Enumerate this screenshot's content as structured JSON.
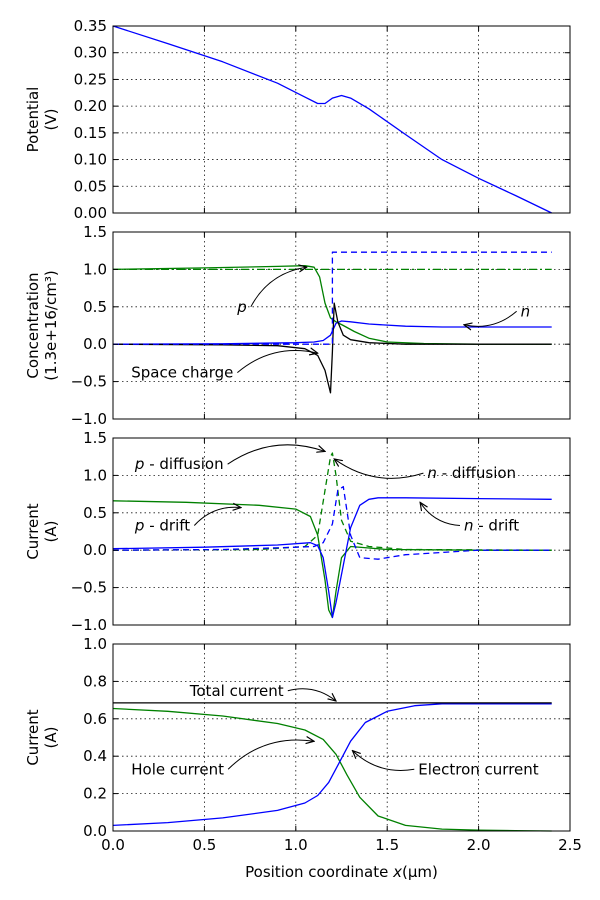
{
  "colors": {
    "blue": "#0000ff",
    "green": "#008000",
    "black": "#000000"
  },
  "chart_data": [
    {
      "type": "line",
      "ylabel_lines": [
        "Potential",
        "(V)"
      ],
      "xlim": [
        0.0,
        2.5
      ],
      "ylim": [
        0.0,
        0.35
      ],
      "yticks": [
        "0.00",
        "0.05",
        "0.10",
        "0.15",
        "0.20",
        "0.25",
        "0.30",
        "0.35"
      ],
      "grid": true,
      "series": [
        {
          "color": "blue",
          "style": "solid",
          "x": [
            0.0,
            0.3,
            0.6,
            0.9,
            1.05,
            1.12,
            1.16,
            1.2,
            1.25,
            1.3,
            1.4,
            1.6,
            1.8,
            2.0,
            2.2,
            2.4
          ],
          "y": [
            0.35,
            0.317,
            0.283,
            0.243,
            0.217,
            0.205,
            0.205,
            0.215,
            0.22,
            0.215,
            0.195,
            0.147,
            0.1,
            0.065,
            0.033,
            0.0
          ]
        }
      ],
      "annotations": []
    },
    {
      "type": "line",
      "ylabel_lines": [
        "Concentration",
        "(1.3e+16/cm³)"
      ],
      "xlim": [
        0.0,
        2.5
      ],
      "ylim": [
        -1.0,
        1.5
      ],
      "yticks": [
        "−1.0",
        "−0.5",
        "0.0",
        "0.5",
        "1.0",
        "1.5"
      ],
      "grid": true,
      "series": [
        {
          "color": "green",
          "style": "solid",
          "x": [
            0.0,
            0.5,
            0.9,
            1.05,
            1.1,
            1.13,
            1.16,
            1.19,
            1.22,
            1.26,
            1.32,
            1.4,
            1.5,
            1.7,
            2.0,
            2.4
          ],
          "y": [
            1.0,
            1.02,
            1.04,
            1.05,
            1.03,
            0.9,
            0.55,
            0.35,
            0.3,
            0.25,
            0.17,
            0.08,
            0.03,
            0.01,
            0.0,
            0.0
          ]
        },
        {
          "color": "blue",
          "style": "solid",
          "x": [
            0.0,
            0.6,
            1.0,
            1.1,
            1.15,
            1.19,
            1.22,
            1.25,
            1.3,
            1.4,
            1.6,
            1.8,
            2.4
          ],
          "y": [
            0.0,
            0.005,
            0.02,
            0.03,
            0.05,
            0.12,
            0.28,
            0.31,
            0.3,
            0.27,
            0.24,
            0.23,
            0.23
          ]
        },
        {
          "color": "black",
          "style": "solid",
          "x": [
            0.0,
            0.6,
            0.9,
            1.05,
            1.12,
            1.16,
            1.19,
            1.2,
            1.21,
            1.23,
            1.26,
            1.3,
            1.4,
            1.6,
            2.4
          ],
          "y": [
            0.0,
            -0.01,
            -0.02,
            -0.06,
            -0.15,
            -0.35,
            -0.65,
            -0.1,
            0.55,
            0.3,
            0.12,
            0.06,
            0.02,
            0.0,
            0.0
          ]
        },
        {
          "color": "green",
          "style": "dashdot",
          "x": [
            0.0,
            1.2,
            2.4
          ],
          "y": [
            1.0,
            1.0,
            1.0
          ]
        },
        {
          "color": "blue",
          "style": "dashed",
          "x": [
            0.0,
            1.2,
            1.2,
            2.4
          ],
          "y": [
            0.0,
            0.0,
            1.23,
            1.23
          ]
        }
      ],
      "annotations": [
        {
          "text": "p",
          "italic": true,
          "x": 0.68,
          "y": 0.5,
          "tx": 1.06,
          "ty": 1.03
        },
        {
          "text": "n",
          "italic": true,
          "x": 2.23,
          "y": 0.44,
          "tx": 1.92,
          "ty": 0.26
        },
        {
          "text": "Space charge",
          "italic": false,
          "x": 0.1,
          "y": -0.38,
          "tx": 1.12,
          "ty": -0.12
        }
      ]
    },
    {
      "type": "line",
      "ylabel_lines": [
        "Current",
        "(A)"
      ],
      "xlim": [
        0.0,
        2.5
      ],
      "ylim": [
        -1.0,
        1.5
      ],
      "yticks": [
        "−1.0",
        "−0.5",
        "0.0",
        "0.5",
        "1.0",
        "1.5"
      ],
      "grid": true,
      "series": [
        {
          "color": "green",
          "style": "solid",
          "x": [
            0.0,
            0.4,
            0.8,
            1.0,
            1.08,
            1.12,
            1.16,
            1.18,
            1.2,
            1.22,
            1.25,
            1.3,
            1.4,
            1.5,
            2.0,
            2.4
          ],
          "y": [
            0.66,
            0.64,
            0.6,
            0.55,
            0.45,
            0.2,
            -0.4,
            -0.8,
            -0.9,
            -0.55,
            -0.1,
            0.05,
            0.03,
            0.01,
            0.0,
            0.0
          ]
        },
        {
          "color": "blue",
          "style": "solid",
          "x": [
            0.0,
            0.5,
            0.9,
            1.08,
            1.12,
            1.15,
            1.18,
            1.2,
            1.22,
            1.26,
            1.3,
            1.35,
            1.4,
            1.45,
            1.6,
            2.0,
            2.4
          ],
          "y": [
            0.02,
            0.04,
            0.07,
            0.1,
            0.06,
            -0.1,
            -0.55,
            -0.9,
            -0.7,
            -0.2,
            0.3,
            0.6,
            0.68,
            0.7,
            0.7,
            0.69,
            0.68
          ]
        },
        {
          "color": "green",
          "style": "dashed",
          "x": [
            0.0,
            0.8,
            1.05,
            1.12,
            1.16,
            1.19,
            1.2,
            1.22,
            1.25,
            1.3,
            1.4,
            1.6,
            2.4
          ],
          "y": [
            0.0,
            0.01,
            0.05,
            0.2,
            0.8,
            1.25,
            1.3,
            1.0,
            0.4,
            0.12,
            0.05,
            0.01,
            0.0
          ]
        },
        {
          "color": "blue",
          "style": "dashed",
          "x": [
            0.0,
            0.6,
            1.0,
            1.1,
            1.15,
            1.2,
            1.23,
            1.26,
            1.3,
            1.35,
            1.45,
            1.6,
            2.0,
            2.4
          ],
          "y": [
            0.0,
            0.01,
            0.04,
            0.05,
            0.1,
            0.35,
            0.8,
            0.85,
            0.2,
            -0.1,
            -0.12,
            -0.06,
            0.0,
            0.0
          ]
        }
      ],
      "annotations": [
        {
          "text": "p - diffusion",
          "italic": false,
          "italic_prefix": "p",
          "x": 0.12,
          "y": 1.15,
          "tx": 1.16,
          "ty": 1.32
        },
        {
          "text": "n - diffusion",
          "italic": false,
          "italic_prefix": "n",
          "x": 1.72,
          "y": 1.03,
          "tx": 1.21,
          "ty": 1.22
        },
        {
          "text": "p - drift",
          "italic": false,
          "italic_prefix": "p",
          "x": 0.12,
          "y": 0.33,
          "tx": 0.7,
          "ty": 0.57
        },
        {
          "text": "n - drift",
          "italic": false,
          "italic_prefix": "n",
          "x": 1.92,
          "y": 0.33,
          "tx": 1.68,
          "ty": 0.64
        }
      ]
    },
    {
      "type": "line",
      "ylabel_lines": [
        "Current",
        "(A)"
      ],
      "xlabel_prefix": "Position coordinate ",
      "xlabel_var": "x",
      "xlabel_suffix": "(μm)",
      "xlim": [
        0.0,
        2.5
      ],
      "ylim": [
        0.0,
        1.0
      ],
      "xticks": [
        "0.0",
        "0.5",
        "1.0",
        "1.5",
        "2.0",
        "2.5"
      ],
      "yticks": [
        "0.0",
        "0.2",
        "0.4",
        "0.6",
        "0.8",
        "1.0"
      ],
      "grid": true,
      "series": [
        {
          "color": "green",
          "style": "solid",
          "x": [
            0.0,
            0.3,
            0.6,
            0.9,
            1.05,
            1.15,
            1.22,
            1.28,
            1.35,
            1.45,
            1.6,
            1.8,
            2.0,
            2.2,
            2.4
          ],
          "y": [
            0.655,
            0.64,
            0.615,
            0.575,
            0.54,
            0.49,
            0.41,
            0.3,
            0.18,
            0.08,
            0.03,
            0.01,
            0.005,
            0.002,
            0.0
          ]
        },
        {
          "color": "blue",
          "style": "solid",
          "x": [
            0.0,
            0.3,
            0.6,
            0.9,
            1.05,
            1.12,
            1.18,
            1.24,
            1.3,
            1.38,
            1.5,
            1.65,
            1.8,
            2.0,
            2.2,
            2.4
          ],
          "y": [
            0.03,
            0.045,
            0.07,
            0.11,
            0.15,
            0.19,
            0.26,
            0.37,
            0.48,
            0.58,
            0.64,
            0.67,
            0.68,
            0.68,
            0.68,
            0.68
          ]
        },
        {
          "color": "black",
          "style": "solid",
          "x": [
            0.0,
            2.4
          ],
          "y": [
            0.685,
            0.685
          ]
        }
      ],
      "annotations": [
        {
          "text": "Total current",
          "italic": false,
          "x": 0.42,
          "y": 0.75,
          "tx": 1.22,
          "ty": 0.695
        },
        {
          "text": "Hole current",
          "italic": false,
          "x": 0.1,
          "y": 0.33,
          "tx": 1.1,
          "ty": 0.48
        },
        {
          "text": "Electron current",
          "italic": false,
          "x": 1.67,
          "y": 0.33,
          "tx": 1.31,
          "ty": 0.43
        }
      ]
    }
  ]
}
